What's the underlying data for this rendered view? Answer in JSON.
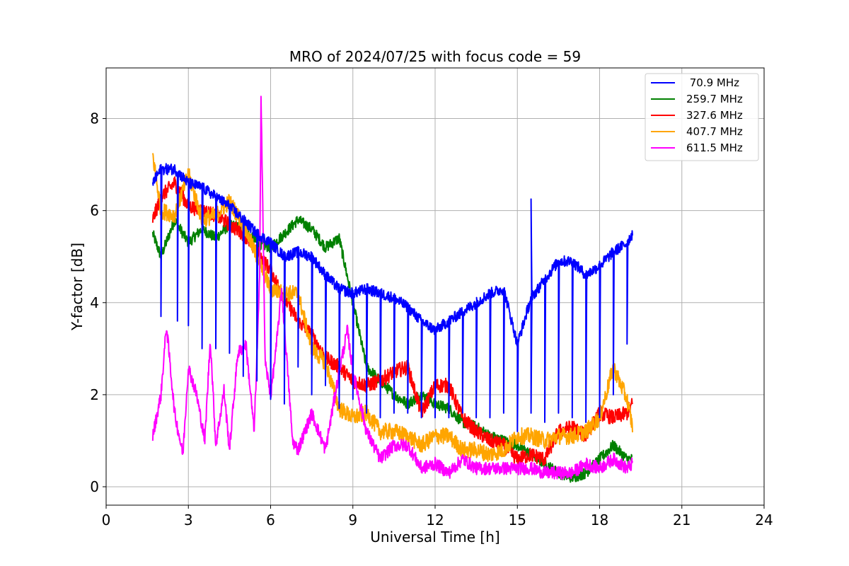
{
  "chart_data": {
    "type": "line",
    "title": "MRO of 2024/07/25 with focus code = 59",
    "xlabel": "Universal Time [h]",
    "ylabel": "Y-factor [dB]",
    "xlim": [
      0,
      24
    ],
    "ylim": [
      -0.4,
      9.1
    ],
    "xticks": [
      "0",
      "3",
      "6",
      "9",
      "12",
      "15",
      "18",
      "21",
      "24"
    ],
    "yticks": [
      "0",
      "2",
      "4",
      "6",
      "8"
    ],
    "grid": true,
    "legend_position": "top-right",
    "series": [
      {
        "name": " 70.9 MHz",
        "color": "#0000ff",
        "points": [
          [
            1.7,
            6.6
          ],
          [
            2.0,
            6.9
          ],
          [
            2.5,
            6.9
          ],
          [
            3.0,
            6.6
          ],
          [
            3.5,
            6.5
          ],
          [
            4.0,
            6.3
          ],
          [
            4.5,
            6.1
          ],
          [
            5.0,
            5.8
          ],
          [
            5.5,
            5.5
          ],
          [
            6.0,
            5.3
          ],
          [
            6.5,
            5.0
          ],
          [
            7.0,
            5.1
          ],
          [
            7.5,
            5.0
          ],
          [
            8.0,
            4.6
          ],
          [
            8.5,
            4.3
          ],
          [
            9.0,
            4.2
          ],
          [
            9.5,
            4.3
          ],
          [
            10.0,
            4.2
          ],
          [
            10.5,
            4.1
          ],
          [
            11.0,
            3.9
          ],
          [
            11.5,
            3.6
          ],
          [
            12.0,
            3.4
          ],
          [
            12.5,
            3.6
          ],
          [
            13.0,
            3.8
          ],
          [
            13.5,
            4.0
          ],
          [
            14.0,
            4.2
          ],
          [
            14.5,
            4.3
          ],
          [
            15.0,
            3.1
          ],
          [
            15.5,
            4.1
          ],
          [
            16.0,
            4.5
          ],
          [
            16.5,
            4.9
          ],
          [
            17.0,
            4.9
          ],
          [
            17.5,
            4.6
          ],
          [
            18.0,
            4.8
          ],
          [
            18.5,
            5.1
          ],
          [
            19.0,
            5.3
          ],
          [
            19.2,
            5.5
          ]
        ],
        "dips": [
          [
            2.0,
            3.7
          ],
          [
            2.6,
            3.6
          ],
          [
            3.0,
            3.5
          ],
          [
            3.5,
            3.0
          ],
          [
            4.0,
            3.0
          ],
          [
            4.5,
            2.9
          ],
          [
            5.0,
            2.4
          ],
          [
            5.5,
            2.3
          ],
          [
            6.0,
            1.9
          ],
          [
            6.5,
            1.8
          ],
          [
            7.0,
            2.6
          ],
          [
            7.5,
            2.0
          ],
          [
            8.0,
            2.2
          ],
          [
            8.5,
            1.7
          ],
          [
            9.0,
            1.9
          ],
          [
            9.5,
            1.6
          ],
          [
            10.0,
            1.5
          ],
          [
            10.5,
            1.6
          ],
          [
            11.0,
            1.6
          ],
          [
            11.5,
            1.5
          ],
          [
            12.0,
            1.5
          ],
          [
            12.5,
            1.5
          ],
          [
            13.0,
            1.6
          ],
          [
            13.5,
            1.5
          ],
          [
            14.0,
            1.5
          ],
          [
            14.5,
            1.6
          ],
          [
            15.0,
            1.2
          ],
          [
            15.5,
            1.6
          ],
          [
            16.0,
            1.4
          ],
          [
            16.5,
            1.6
          ],
          [
            17.0,
            1.5
          ],
          [
            17.5,
            1.4
          ],
          [
            18.0,
            1.5
          ],
          [
            18.5,
            2.0
          ],
          [
            19.0,
            3.1
          ]
        ],
        "spike": [
          15.5,
          6.25
        ]
      },
      {
        "name": "259.7 MHz",
        "color": "#008000",
        "points": [
          [
            1.7,
            5.5
          ],
          [
            2.0,
            5.0
          ],
          [
            2.5,
            5.8
          ],
          [
            3.0,
            5.3
          ],
          [
            3.5,
            5.6
          ],
          [
            4.0,
            5.4
          ],
          [
            4.5,
            5.7
          ],
          [
            5.0,
            5.6
          ],
          [
            5.5,
            5.3
          ],
          [
            6.0,
            5.2
          ],
          [
            6.5,
            5.5
          ],
          [
            7.0,
            5.8
          ],
          [
            7.5,
            5.6
          ],
          [
            8.0,
            5.2
          ],
          [
            8.5,
            5.4
          ],
          [
            9.0,
            4.0
          ],
          [
            9.5,
            2.6
          ],
          [
            10.0,
            2.3
          ],
          [
            10.5,
            2.0
          ],
          [
            11.0,
            1.8
          ],
          [
            11.5,
            2.0
          ],
          [
            12.0,
            1.8
          ],
          [
            12.5,
            1.7
          ],
          [
            13.0,
            1.4
          ],
          [
            13.5,
            1.3
          ],
          [
            14.0,
            1.1
          ],
          [
            14.5,
            1.0
          ],
          [
            15.0,
            0.9
          ],
          [
            15.5,
            0.7
          ],
          [
            16.0,
            0.5
          ],
          [
            16.5,
            0.3
          ],
          [
            17.0,
            0.2
          ],
          [
            17.5,
            0.3
          ],
          [
            18.0,
            0.6
          ],
          [
            18.5,
            0.9
          ],
          [
            19.0,
            0.6
          ],
          [
            19.2,
            0.6
          ]
        ]
      },
      {
        "name": "327.6 MHz",
        "color": "#ff0000",
        "points": [
          [
            1.7,
            5.8
          ],
          [
            2.0,
            6.3
          ],
          [
            2.5,
            6.6
          ],
          [
            3.0,
            6.1
          ],
          [
            3.5,
            6.0
          ],
          [
            4.0,
            5.9
          ],
          [
            4.5,
            5.7
          ],
          [
            5.0,
            5.5
          ],
          [
            5.5,
            5.1
          ],
          [
            6.0,
            4.7
          ],
          [
            6.5,
            4.1
          ],
          [
            7.0,
            3.6
          ],
          [
            7.5,
            3.3
          ],
          [
            8.0,
            2.8
          ],
          [
            8.5,
            2.6
          ],
          [
            9.0,
            2.3
          ],
          [
            9.5,
            2.2
          ],
          [
            10.0,
            2.3
          ],
          [
            10.5,
            2.5
          ],
          [
            11.0,
            2.6
          ],
          [
            11.5,
            1.6
          ],
          [
            12.0,
            2.2
          ],
          [
            12.5,
            2.2
          ],
          [
            13.0,
            1.5
          ],
          [
            13.5,
            1.2
          ],
          [
            14.0,
            1.0
          ],
          [
            14.5,
            0.9
          ],
          [
            15.0,
            0.6
          ],
          [
            15.5,
            0.7
          ],
          [
            16.0,
            0.6
          ],
          [
            16.5,
            1.2
          ],
          [
            17.0,
            1.3
          ],
          [
            17.5,
            1.1
          ],
          [
            18.0,
            1.6
          ],
          [
            18.5,
            1.5
          ],
          [
            19.0,
            1.6
          ],
          [
            19.2,
            1.8
          ]
        ]
      },
      {
        "name": "407.7 MHz",
        "color": "#ffa500",
        "points": [
          [
            1.7,
            7.2
          ],
          [
            2.0,
            6.0
          ],
          [
            2.5,
            5.9
          ],
          [
            3.0,
            6.8
          ],
          [
            3.5,
            5.8
          ],
          [
            4.0,
            5.9
          ],
          [
            4.5,
            6.2
          ],
          [
            5.0,
            5.7
          ],
          [
            5.5,
            5.0
          ],
          [
            6.0,
            4.3
          ],
          [
            6.5,
            4.2
          ],
          [
            7.0,
            4.2
          ],
          [
            7.5,
            3.0
          ],
          [
            8.0,
            2.7
          ],
          [
            8.5,
            1.7
          ],
          [
            9.0,
            1.5
          ],
          [
            9.5,
            1.6
          ],
          [
            10.0,
            1.2
          ],
          [
            10.5,
            1.2
          ],
          [
            11.0,
            1.1
          ],
          [
            11.5,
            0.9
          ],
          [
            12.0,
            1.1
          ],
          [
            12.5,
            1.1
          ],
          [
            13.0,
            0.8
          ],
          [
            13.5,
            0.8
          ],
          [
            14.0,
            0.7
          ],
          [
            14.5,
            0.8
          ],
          [
            15.0,
            1.1
          ],
          [
            15.5,
            1.1
          ],
          [
            16.0,
            1.0
          ],
          [
            16.5,
            1.1
          ],
          [
            17.0,
            1.1
          ],
          [
            17.5,
            1.2
          ],
          [
            18.0,
            1.5
          ],
          [
            18.5,
            2.6
          ],
          [
            19.0,
            1.9
          ],
          [
            19.2,
            1.3
          ]
        ]
      },
      {
        "name": "611.5 MHz",
        "color": "#ff00ff",
        "points": [
          [
            1.7,
            1.1
          ],
          [
            2.0,
            2.0
          ],
          [
            2.2,
            3.5
          ],
          [
            2.5,
            1.6
          ],
          [
            2.8,
            0.7
          ],
          [
            3.0,
            2.6
          ],
          [
            3.3,
            2.0
          ],
          [
            3.6,
            1.0
          ],
          [
            3.8,
            3.2
          ],
          [
            4.0,
            0.9
          ],
          [
            4.3,
            2.1
          ],
          [
            4.5,
            0.8
          ],
          [
            4.8,
            2.9
          ],
          [
            5.1,
            3.1
          ],
          [
            5.4,
            1.2
          ],
          [
            5.6,
            4.5
          ],
          [
            5.65,
            8.6
          ],
          [
            5.8,
            2.7
          ],
          [
            6.0,
            2.0
          ],
          [
            6.2,
            3.0
          ],
          [
            6.4,
            4.3
          ],
          [
            6.6,
            2.7
          ],
          [
            6.8,
            1.0
          ],
          [
            7.0,
            0.8
          ],
          [
            7.5,
            1.6
          ],
          [
            8.0,
            0.8
          ],
          [
            8.5,
            2.5
          ],
          [
            8.8,
            3.4
          ],
          [
            9.0,
            2.5
          ],
          [
            9.5,
            1.2
          ],
          [
            10.0,
            0.6
          ],
          [
            10.5,
            0.9
          ],
          [
            11.0,
            0.9
          ],
          [
            11.5,
            0.4
          ],
          [
            12.0,
            0.5
          ],
          [
            12.5,
            0.3
          ],
          [
            13.0,
            0.6
          ],
          [
            13.5,
            0.4
          ],
          [
            14.0,
            0.4
          ],
          [
            14.5,
            0.4
          ],
          [
            15.0,
            0.4
          ],
          [
            15.5,
            0.4
          ],
          [
            16.0,
            0.3
          ],
          [
            16.5,
            0.3
          ],
          [
            17.0,
            0.3
          ],
          [
            17.5,
            0.5
          ],
          [
            18.0,
            0.4
          ],
          [
            18.5,
            0.6
          ],
          [
            19.0,
            0.4
          ],
          [
            19.2,
            0.5
          ]
        ]
      }
    ]
  }
}
